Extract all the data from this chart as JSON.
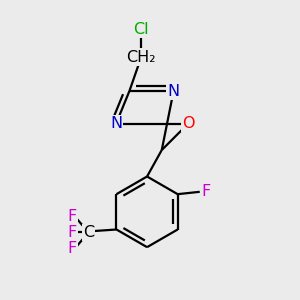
{
  "bg_color": "#ebebeb",
  "atom_colors": {
    "C": "#000000",
    "N": "#0000cd",
    "O": "#ff0000",
    "F": "#cc00cc",
    "Cl": "#00aa00"
  },
  "bond_color": "#000000",
  "bond_width": 1.6,
  "font_size": 11.5
}
